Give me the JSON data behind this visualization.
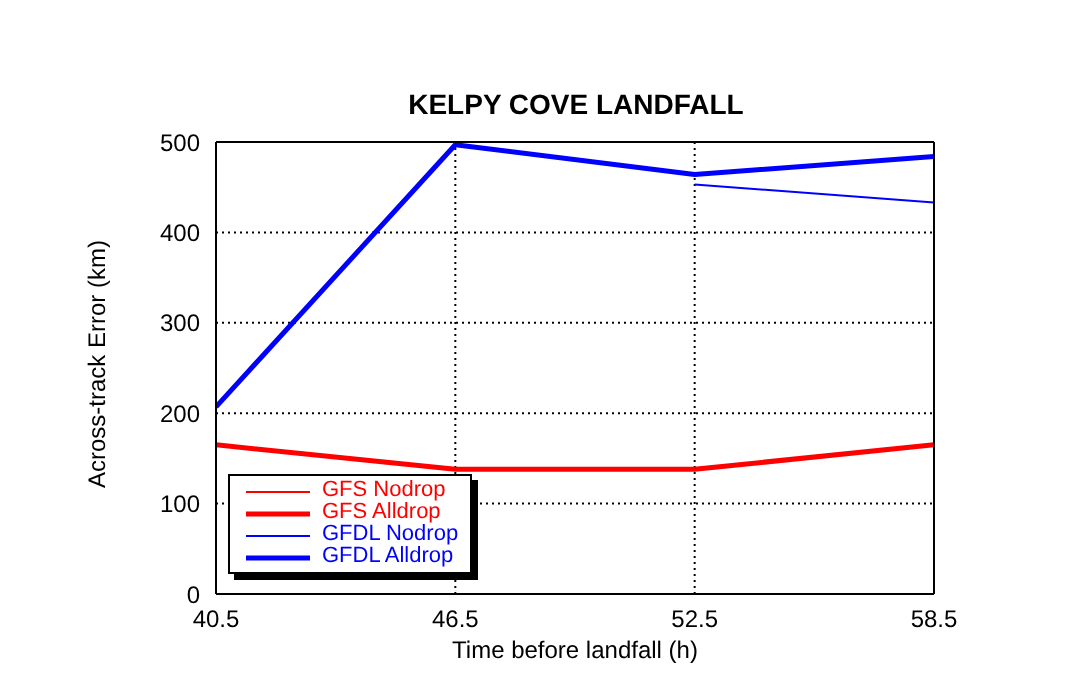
{
  "chart_data": {
    "type": "line",
    "title": "KELPY COVE LANDFALL",
    "xlabel": "Time before landfall (h)",
    "ylabel": "Across-track Error (km)",
    "x": [
      40.5,
      46.5,
      52.5,
      58.5
    ],
    "series": [
      {
        "name": "GFS Nodrop",
        "color": "#ff0000",
        "values": [
          null,
          null,
          null,
          null
        ]
      },
      {
        "name": "GFS Alldrop",
        "color": "#ff0000",
        "values": [
          165,
          138,
          138,
          165
        ]
      },
      {
        "name": "GFDL Nodrop",
        "color": "#0000ff",
        "values": [
          null,
          null,
          453,
          433
        ]
      },
      {
        "name": "GFDL Alldrop",
        "color": "#0000ff",
        "values": [
          207,
          497,
          464,
          484
        ]
      }
    ],
    "xlim": [
      40.5,
      58.5
    ],
    "xticks": [
      40.5,
      46.5,
      52.5,
      58.5
    ],
    "ylim": [
      0,
      500
    ],
    "yticks": [
      0,
      100,
      200,
      300,
      400,
      500
    ],
    "grid": true,
    "legend": "bottom left",
    "marker": "none",
    "line_style": "solid"
  }
}
